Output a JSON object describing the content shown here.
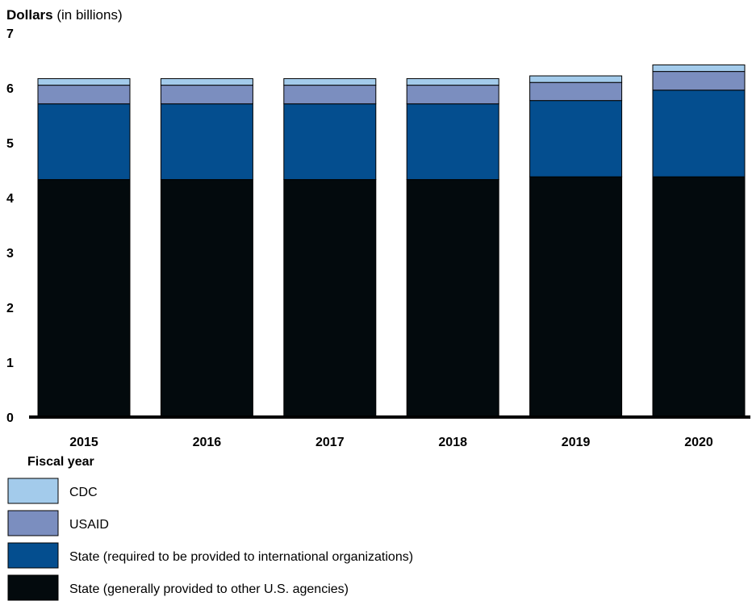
{
  "chart_data": {
    "type": "bar",
    "stacked": true,
    "ylabel_bold": "Dollars",
    "ylabel_rest": " (in billions)",
    "xlabel": "Fiscal year",
    "ylim": [
      0,
      7
    ],
    "yticks": [
      "0",
      "1",
      "2",
      "3",
      "4",
      "5",
      "6",
      "7"
    ],
    "categories": [
      "2015",
      "2016",
      "2017",
      "2018",
      "2019",
      "2020"
    ],
    "series": [
      {
        "name": "State (generally provided to other U.S. agencies)",
        "color": "#030A0D",
        "values": [
          4.33,
          4.33,
          4.33,
          4.33,
          4.38,
          4.38
        ]
      },
      {
        "name": "State (required to be provided to international organizations)",
        "color": "#044E8F",
        "values": [
          1.38,
          1.38,
          1.38,
          1.38,
          1.39,
          1.58
        ]
      },
      {
        "name": "USAID",
        "color": "#7B8EBF",
        "values": [
          0.34,
          0.34,
          0.34,
          0.34,
          0.33,
          0.34
        ]
      },
      {
        "name": "CDC",
        "color": "#A3CBEB",
        "values": [
          0.12,
          0.12,
          0.12,
          0.12,
          0.12,
          0.12
        ]
      }
    ],
    "legend_order": [
      "CDC",
      "USAID",
      "State (required to be provided to international organizations)",
      "State (generally provided to other U.S. agencies)"
    ],
    "legend_position": "bottom-left",
    "grid": false
  }
}
